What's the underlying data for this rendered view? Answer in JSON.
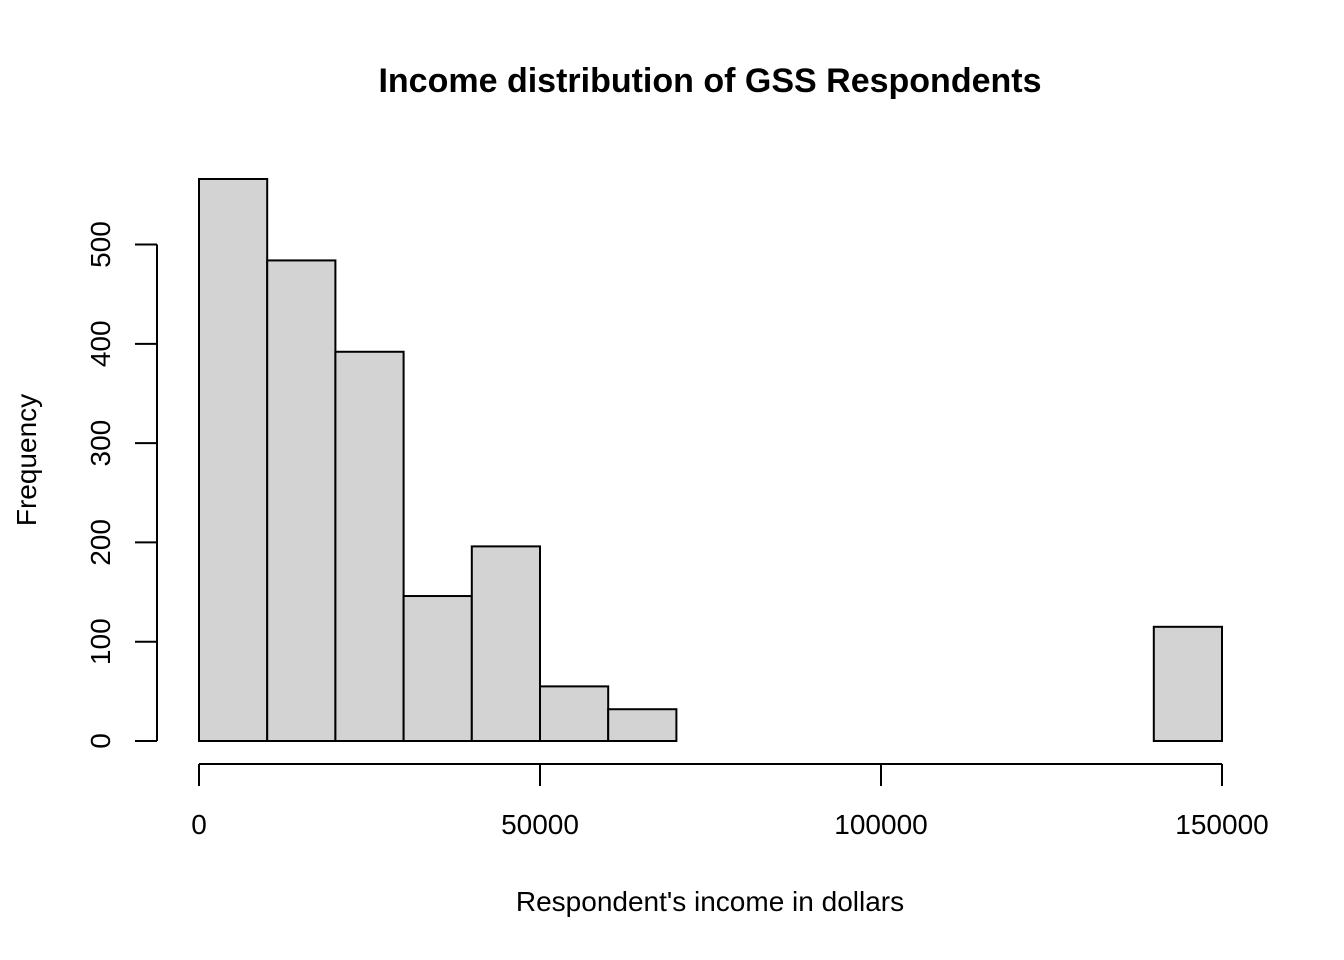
{
  "chart_data": {
    "type": "bar",
    "title": "Income distribution of GSS Respondents",
    "xlabel": "Respondent's income in dollars",
    "ylabel": "Frequency",
    "bins": [
      {
        "from": 0,
        "to": 10000,
        "count": 566
      },
      {
        "from": 10000,
        "to": 20000,
        "count": 484
      },
      {
        "from": 20000,
        "to": 30000,
        "count": 392
      },
      {
        "from": 30000,
        "to": 40000,
        "count": 146
      },
      {
        "from": 40000,
        "to": 50000,
        "count": 196
      },
      {
        "from": 50000,
        "to": 60000,
        "count": 55
      },
      {
        "from": 60000,
        "to": 70000,
        "count": 32
      },
      {
        "from": 70000,
        "to": 80000,
        "count": 0
      },
      {
        "from": 80000,
        "to": 90000,
        "count": 0
      },
      {
        "from": 90000,
        "to": 100000,
        "count": 0
      },
      {
        "from": 100000,
        "to": 110000,
        "count": 0
      },
      {
        "from": 110000,
        "to": 120000,
        "count": 0
      },
      {
        "from": 120000,
        "to": 130000,
        "count": 0
      },
      {
        "from": 130000,
        "to": 140000,
        "count": 0
      },
      {
        "from": 140000,
        "to": 150000,
        "count": 115
      }
    ],
    "xlim": [
      0,
      150000
    ],
    "ylim": [
      0,
      566
    ],
    "x_ticks": [
      0,
      50000,
      100000,
      150000
    ],
    "x_tick_labels": [
      "0",
      "50000",
      "100000",
      "150000"
    ],
    "y_ticks": [
      0,
      100,
      200,
      300,
      400,
      500
    ],
    "y_tick_labels": [
      "0",
      "100",
      "200",
      "300",
      "400",
      "500"
    ],
    "bar_fill": "#d3d3d3",
    "bar_stroke": "#000000",
    "grid": false,
    "legend": "none"
  }
}
